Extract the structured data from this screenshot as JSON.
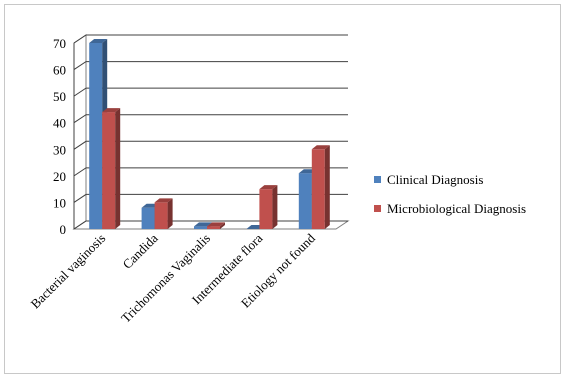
{
  "chart_data": {
    "type": "bar",
    "categories": [
      "Bacterial vaginosis",
      "Candida",
      "Trichomonas Vaginalis",
      "Intermediate flora",
      "Etiology not found"
    ],
    "series": [
      {
        "name": "Clinical Diagnosis",
        "values": [
          70,
          8,
          1,
          0,
          21
        ],
        "color": "#4f81bd"
      },
      {
        "name": "Microbiological Diagnosis",
        "values": [
          44,
          10,
          1,
          15,
          30
        ],
        "color": "#c0504d"
      }
    ],
    "yticks": [
      0,
      10,
      20,
      30,
      40,
      50,
      60,
      70
    ],
    "ylim": [
      0,
      70
    ],
    "grid": true,
    "legend": "right",
    "style": "3d-clustered-column"
  }
}
